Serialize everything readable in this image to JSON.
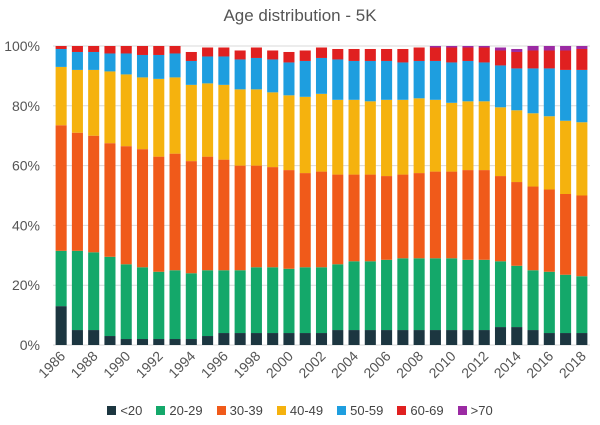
{
  "chart_data": {
    "type": "bar",
    "stacked": true,
    "title": "Age distribution - 5K",
    "xlabel": "",
    "ylabel": "",
    "ylim": [
      0,
      100
    ],
    "yticks": [
      "0%",
      "20%",
      "40%",
      "60%",
      "80%",
      "100%"
    ],
    "ytick_values": [
      0,
      20,
      40,
      60,
      80,
      100
    ],
    "grid": "horizontal",
    "legend_position": "bottom",
    "categories": [
      "1986",
      "1987",
      "1988",
      "1989",
      "1990",
      "1991",
      "1992",
      "1993",
      "1994",
      "1995",
      "1996",
      "1997",
      "1998",
      "1999",
      "2000",
      "2001",
      "2002",
      "2003",
      "2004",
      "2005",
      "2006",
      "2007",
      "2008",
      "2009",
      "2010",
      "2011",
      "2012",
      "2013",
      "2014",
      "2015",
      "2016",
      "2017",
      "2018"
    ],
    "xtick_labels": [
      "1986",
      "1988",
      "1990",
      "1992",
      "1994",
      "1996",
      "1998",
      "2000",
      "2002",
      "2004",
      "2006",
      "2008",
      "2010",
      "2012",
      "2014",
      "2016",
      "2018"
    ],
    "series": [
      {
        "name": "<20",
        "color": "#1c3640",
        "values": [
          13,
          5,
          5,
          3,
          2,
          2,
          2,
          2,
          2,
          3,
          4,
          4,
          4,
          4,
          4,
          4,
          4,
          5,
          5,
          5,
          5,
          5,
          5,
          5,
          5,
          5,
          5,
          6,
          6,
          5,
          4,
          4,
          4
        ]
      },
      {
        "name": "20-29",
        "color": "#14a86a",
        "values": [
          18.5,
          26.5,
          26,
          26.5,
          25,
          24,
          22.5,
          23,
          22,
          22,
          21,
          21,
          22,
          22,
          21.5,
          22,
          22,
          22,
          23,
          23,
          23.5,
          24,
          24,
          24,
          24,
          23.5,
          23.5,
          22,
          20.5,
          20,
          20.5,
          19.5,
          19
        ]
      },
      {
        "name": "30-39",
        "color": "#f05a1a",
        "values": [
          42,
          39.5,
          39,
          38,
          39.5,
          39.5,
          38.5,
          39,
          37.5,
          38,
          37,
          35,
          34,
          33.5,
          33,
          31.5,
          32,
          30,
          29,
          29,
          28,
          28,
          28.5,
          29,
          29,
          30,
          30,
          28.5,
          28,
          28,
          27.5,
          27,
          27
        ]
      },
      {
        "name": "40-49",
        "color": "#f5b20e",
        "values": [
          19.5,
          21,
          22,
          24,
          24,
          24,
          26,
          25.5,
          25.5,
          24.5,
          25,
          25.5,
          25.5,
          25,
          25,
          25.5,
          26,
          25,
          25,
          24.5,
          25.5,
          25,
          25,
          24,
          23,
          23,
          23,
          23,
          24,
          24.5,
          24.5,
          24.5,
          24.5
        ]
      },
      {
        "name": "50-59",
        "color": "#1e9edf",
        "values": [
          6,
          6,
          6,
          6,
          7,
          7.5,
          8,
          8,
          8,
          9,
          9.5,
          10,
          10.5,
          11,
          11,
          12,
          12,
          13.5,
          13,
          13.5,
          13,
          12.5,
          12.5,
          13,
          13.5,
          13.5,
          13,
          14,
          14,
          15,
          16,
          17,
          17.5
        ]
      },
      {
        "name": "60-69",
        "color": "#e02020",
        "values": [
          1,
          2,
          2,
          2.5,
          2.5,
          3,
          3,
          2.5,
          3,
          3,
          3,
          3,
          3.5,
          3,
          3.5,
          3.5,
          3.5,
          3.5,
          4,
          4,
          4,
          4.5,
          4.5,
          4.5,
          5,
          4.5,
          5,
          5,
          5.5,
          6,
          6,
          6.5,
          7
        ]
      },
      {
        "name": ">70",
        "color": "#9b2aa3",
        "values": [
          0,
          0,
          0,
          0,
          0,
          0,
          0,
          0,
          0,
          0,
          0,
          0,
          0,
          0,
          0,
          0,
          0,
          0,
          0,
          0,
          0,
          0,
          0,
          0.5,
          0.5,
          0.5,
          0.5,
          1,
          1,
          1.5,
          1.5,
          1.5,
          1
        ]
      }
    ]
  }
}
